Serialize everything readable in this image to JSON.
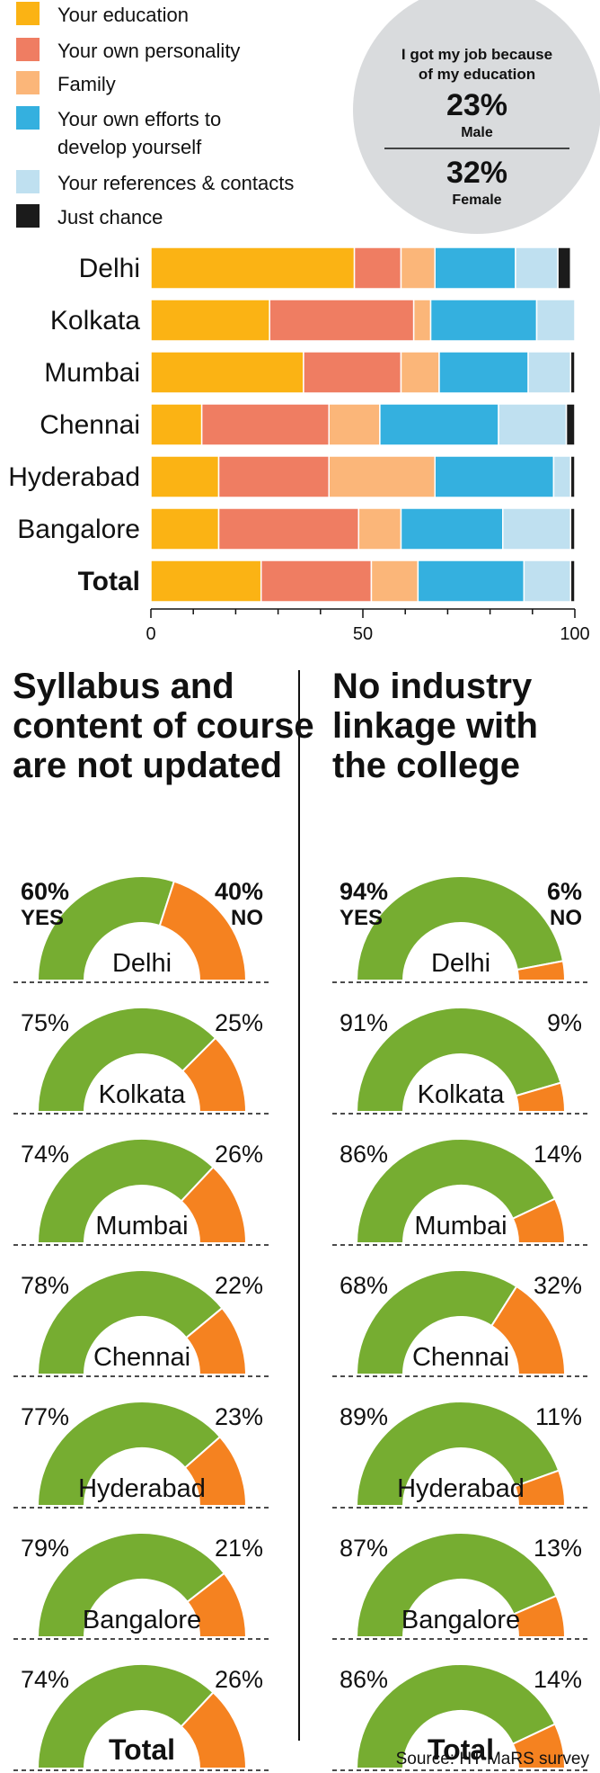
{
  "colors": {
    "education": "#fbb314",
    "personality": "#ef7d62",
    "family": "#fbb679",
    "own_efforts": "#34b0df",
    "references": "#bfe0f0",
    "chance": "#1b1b1b",
    "gauge_yes": "#76ad31",
    "gauge_no": "#f58220",
    "circle_bg": "#d9dbdd"
  },
  "callout": {
    "text": "I got my job because of my education",
    "male_value": "23%",
    "male_label": "Male",
    "female_value": "32%",
    "female_label": "Female"
  },
  "left_panel": {
    "title": "Syllabus and content of course are not updated",
    "yes_label": "YES",
    "no_label": "NO"
  },
  "right_panel": {
    "title": "No industry linkage with the college",
    "yes_label": "YES",
    "no_label": "NO"
  },
  "source": "Source: HT-MaRS survey",
  "chart_data": [
    {
      "type": "bar",
      "orientation": "horizontal",
      "stacked": true,
      "categories": [
        "Delhi",
        "Kolkata",
        "Mumbai",
        "Chennai",
        "Hyderabad",
        "Bangalore",
        "Total"
      ],
      "series": [
        {
          "name": "Your education",
          "color_key": "education",
          "values": [
            48,
            28,
            36,
            12,
            16,
            16,
            26
          ]
        },
        {
          "name": "Your own personality",
          "color_key": "personality",
          "values": [
            11,
            34,
            23,
            30,
            26,
            33,
            26
          ]
        },
        {
          "name": "Family",
          "color_key": "family",
          "values": [
            8,
            4,
            9,
            12,
            25,
            10,
            11
          ]
        },
        {
          "name": "Your own efforts to develop yourself",
          "color_key": "own_efforts",
          "values": [
            19,
            25,
            21,
            28,
            28,
            24,
            25
          ]
        },
        {
          "name": "Your references & contacts",
          "color_key": "references",
          "values": [
            10,
            9,
            10,
            16,
            4,
            16,
            11
          ]
        },
        {
          "name": "Just chance",
          "color_key": "chance",
          "values": [
            3,
            0,
            1,
            2,
            1,
            1,
            1
          ]
        }
      ],
      "xlim": [
        0,
        100
      ],
      "xticks": [
        "0",
        "50",
        "100"
      ],
      "legend_position": "top-left"
    },
    {
      "type": "gauge",
      "title": "Syllabus and content of course are not updated",
      "categories": [
        "Delhi",
        "Kolkata",
        "Mumbai",
        "Chennai",
        "Hyderabad",
        "Bangalore",
        "Total"
      ],
      "series": [
        {
          "name": "YES",
          "values": [
            60,
            75,
            74,
            78,
            77,
            79,
            74
          ],
          "labels": [
            "60%",
            "75%",
            "74%",
            "78%",
            "77%",
            "79%",
            "74%"
          ]
        },
        {
          "name": "NO",
          "values": [
            40,
            25,
            26,
            22,
            23,
            21,
            26
          ],
          "labels": [
            "40%",
            "25%",
            "26%",
            "22%",
            "23%",
            "21%",
            "26%"
          ]
        }
      ]
    },
    {
      "type": "gauge",
      "title": "No industry linkage with the college",
      "categories": [
        "Delhi",
        "Kolkata",
        "Mumbai",
        "Chennai",
        "Hyderabad",
        "Bangalore",
        "Total"
      ],
      "series": [
        {
          "name": "YES",
          "values": [
            94,
            91,
            86,
            68,
            89,
            87,
            86
          ],
          "labels": [
            "94%",
            "91%",
            "86%",
            "68%",
            "89%",
            "87%",
            "86%"
          ]
        },
        {
          "name": "NO",
          "values": [
            6,
            9,
            14,
            32,
            11,
            13,
            14
          ],
          "labels": [
            "6%",
            "9%",
            "14%",
            "32%",
            "11%",
            "13%",
            "14%"
          ]
        }
      ]
    }
  ]
}
